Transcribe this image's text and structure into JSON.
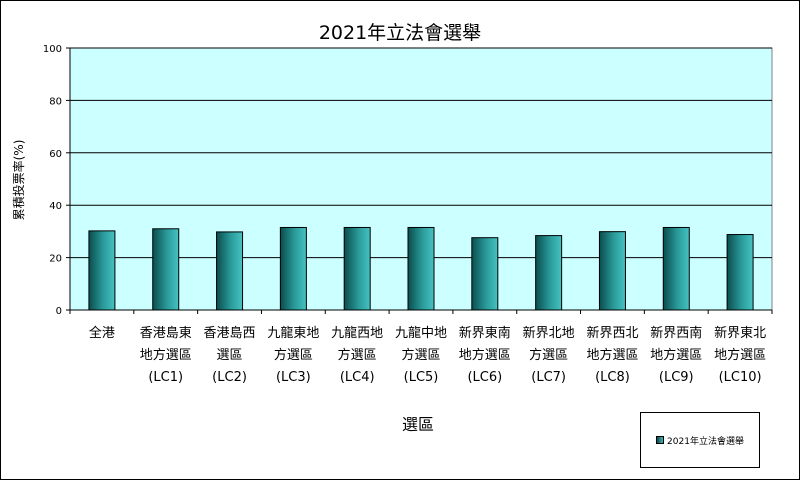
{
  "colors": {
    "plot_bg": "#ccffff",
    "bar_dark": "#0b4d4d",
    "bar_mid": "#2a9a9a",
    "bar_light": "#47c2c2",
    "grid": "#000000"
  },
  "chart_data": {
    "type": "bar",
    "title": "2021年立法會選舉",
    "xlabel": "選區",
    "ylabel": "累積投票率(%)",
    "ylim": [
      0,
      100
    ],
    "yticks": [
      0,
      20,
      40,
      60,
      80,
      100
    ],
    "grid": true,
    "legend_position": "bottom-right",
    "categories": [
      [
        "全港"
      ],
      [
        "香港島東",
        "地方選區",
        "(LC1)"
      ],
      [
        "香港島西",
        "選區",
        "(LC2)"
      ],
      [
        "九龍東地",
        "方選區",
        "(LC3)"
      ],
      [
        "九龍西地",
        "方選區",
        "(LC4)"
      ],
      [
        "九龍中地",
        "方選區",
        "(LC5)"
      ],
      [
        "新界東南",
        "地方選區",
        "(LC6)"
      ],
      [
        "新界北地",
        "方選區",
        "(LC7)"
      ],
      [
        "新界西北",
        "地方選區",
        "(LC8)"
      ],
      [
        "新界西南",
        "地方選區",
        "(LC9)"
      ],
      [
        "新界東北",
        "地方選區",
        "(LC10)"
      ]
    ],
    "series": [
      {
        "name": "2021年立法會選舉",
        "values": [
          30.2,
          31.0,
          29.8,
          31.5,
          31.5,
          31.5,
          27.6,
          28.4,
          29.9,
          31.5,
          28.8
        ]
      }
    ]
  }
}
